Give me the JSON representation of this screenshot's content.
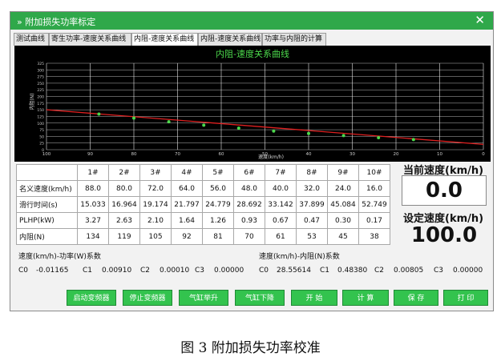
{
  "window": {
    "title": "» 附加损失功率标定",
    "close_glyph": "✕"
  },
  "tabs": [
    {
      "label": "测试曲线",
      "active": false
    },
    {
      "label": "寄生功率-速度关系曲线",
      "active": false
    },
    {
      "label": "内阻-速度关系曲线",
      "active": true
    },
    {
      "label": "内阻-速度关系曲线",
      "active": false
    },
    {
      "label": "功率与内阻的计算",
      "active": false
    }
  ],
  "chart_data": {
    "type": "scatter",
    "title": "内阻-速度关系曲线",
    "xlabel": "速度(km/h)",
    "ylabel": "内阻(N)",
    "xlim": [
      100,
      0
    ],
    "ylim": [
      0,
      325
    ],
    "x_ticks": [
      100,
      90,
      80,
      70,
      60,
      50,
      40,
      30,
      20,
      10,
      0
    ],
    "y_ticks": [
      0,
      25,
      50,
      75,
      100,
      125,
      150,
      175,
      200,
      225,
      250,
      275,
      300,
      325
    ],
    "grid": true,
    "colors": {
      "background": "#000000",
      "points": "#4cd94c",
      "fit_line": "#e02020",
      "grid": "#e8e8e8",
      "title": "#4cd94c"
    },
    "points": {
      "x": [
        88.0,
        80.0,
        72.0,
        64.0,
        56.0,
        48.0,
        40.0,
        32.0,
        24.0,
        16.0
      ],
      "y": [
        134,
        119,
        105,
        92,
        81,
        70,
        61,
        53,
        45,
        38
      ]
    },
    "fit_line": {
      "x": [
        100,
        0
      ],
      "y": [
        150,
        20
      ]
    }
  },
  "table": {
    "columns": [
      "1#",
      "2#",
      "3#",
      "4#",
      "5#",
      "6#",
      "7#",
      "8#",
      "9#",
      "10#"
    ],
    "rows": [
      {
        "label": "名义速度(km/h)",
        "values": [
          "88.0",
          "80.0",
          "72.0",
          "64.0",
          "56.0",
          "48.0",
          "40.0",
          "32.0",
          "24.0",
          "16.0"
        ]
      },
      {
        "label": "滑行时间(s)",
        "values": [
          "15.033",
          "16.964",
          "19.174",
          "21.797",
          "24.779",
          "28.692",
          "33.142",
          "37.899",
          "45.084",
          "52.749"
        ]
      },
      {
        "label": "PLHP(kW)",
        "values": [
          "3.27",
          "2.63",
          "2.10",
          "1.64",
          "1.26",
          "0.93",
          "0.67",
          "0.47",
          "0.30",
          "0.17"
        ]
      },
      {
        "label": "内阻(N)",
        "values": [
          "134",
          "119",
          "105",
          "92",
          "81",
          "70",
          "61",
          "53",
          "45",
          "38"
        ]
      }
    ]
  },
  "speed": {
    "current_label": "当前速度(km/h)",
    "current_value": "0.0",
    "set_label": "设定速度(km/h)",
    "set_value": "100.0"
  },
  "power_coef": {
    "title": "速度(km/h)-功率(W)系数",
    "c0_label": "C0",
    "c0": "-0.01165",
    "c1_label": "C1",
    "c1": "0.00910",
    "c2_label": "C2",
    "c2": "0.00010",
    "c3_label": "C3",
    "c3": "0.00000"
  },
  "resist_coef": {
    "title": "速度(km/h)-内阻(N)系数",
    "c0_label": "C0",
    "c0": "28.55614",
    "c1_label": "C1",
    "c1": "0.48380",
    "c2_label": "C2",
    "c2": "0.00805",
    "c3_label": "C3",
    "c3": "0.00000"
  },
  "buttons": {
    "start_inverter": "启动变频器",
    "stop_inverter": "停止变频器",
    "lift_up": "气缸举升",
    "lift_down": "气缸下降",
    "start": "开 始",
    "calculate": "计 算",
    "save": "保 存",
    "print": "打 印"
  },
  "caption": "图 3    附加损失功率校准"
}
